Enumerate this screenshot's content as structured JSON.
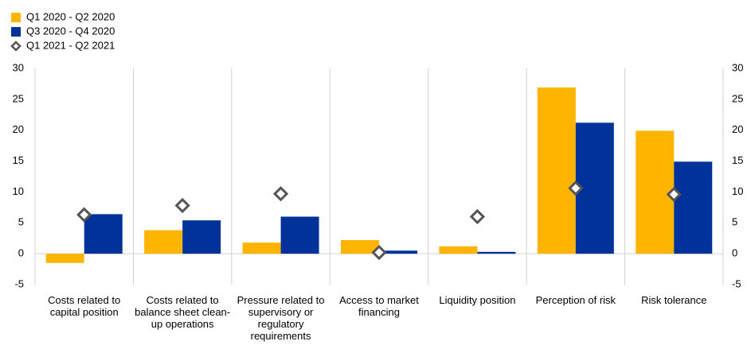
{
  "chart_data": {
    "type": "bar",
    "categories": [
      "Costs related to capital position",
      "Costs related to balance sheet clean-up operations",
      "Pressure related to supervisory or regulatory requirements",
      "Access to market financing",
      "Liquidity position",
      "Perception of risk",
      "Risk tolerance"
    ],
    "series": [
      {
        "name": "Q1 2020 - Q2 2020",
        "color": "#FFB400",
        "kind": "bar",
        "values": [
          -1.5,
          3.8,
          1.8,
          2.2,
          1.2,
          26.9,
          19.9
        ]
      },
      {
        "name": "Q3 2020 - Q4 2020",
        "color": "#003299",
        "kind": "bar",
        "values": [
          6.4,
          5.4,
          6.0,
          0.5,
          0.3,
          21.2,
          14.9
        ]
      },
      {
        "name": "Q1 2021 - Q2 2021",
        "color": "#555555",
        "kind": "diamond",
        "values": [
          6.3,
          7.8,
          9.7,
          0.2,
          6.0,
          10.6,
          9.6
        ]
      }
    ],
    "ylim": [
      -5,
      30
    ],
    "yticks": [
      -5,
      0,
      5,
      10,
      15,
      20,
      25,
      30
    ],
    "y2lim": [
      -5,
      30
    ],
    "y2ticks": [
      -5,
      0,
      5,
      10,
      15,
      20,
      25,
      30
    ],
    "legend": "top-left"
  }
}
